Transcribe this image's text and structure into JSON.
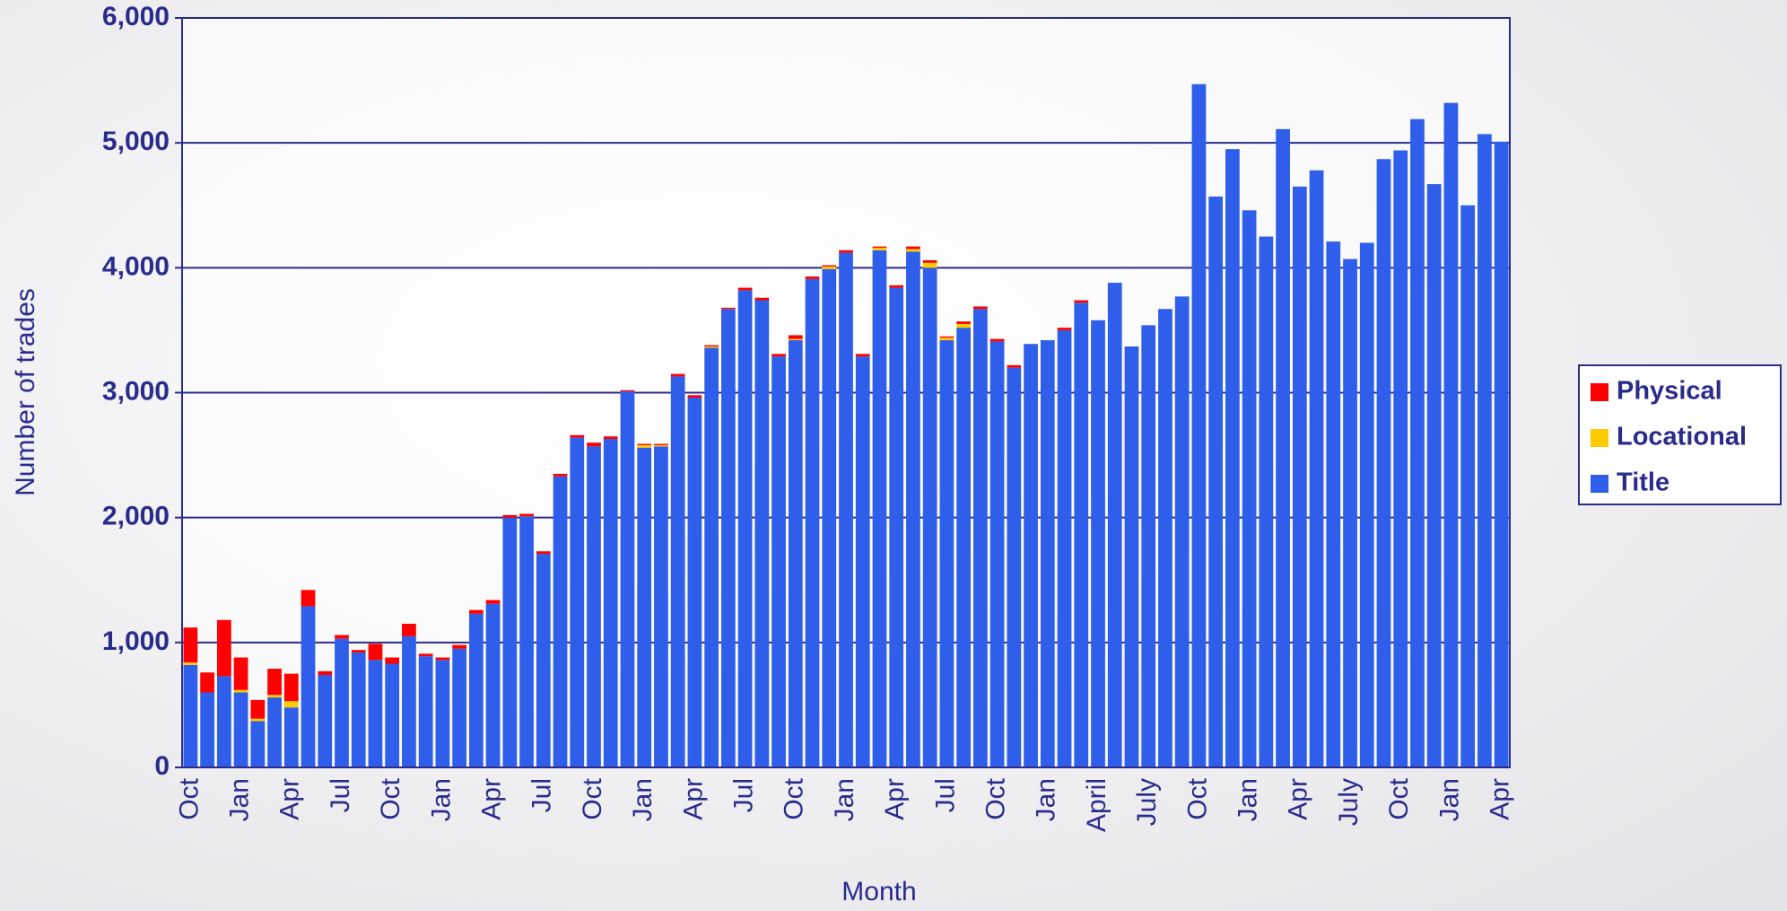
{
  "chart_data": {
    "type": "stacked_bar",
    "x_label": "Month",
    "y_label": "Number of trades",
    "categories": [
      "Oct",
      null,
      null,
      "Jan",
      null,
      null,
      "Apr",
      null,
      null,
      "Jul",
      null,
      null,
      "Oct",
      null,
      null,
      "Jan",
      null,
      null,
      "Apr",
      null,
      null,
      "Jul",
      null,
      null,
      "Oct",
      null,
      null,
      "Jan",
      null,
      null,
      "Apr",
      null,
      null,
      "Jul",
      null,
      null,
      "Oct",
      null,
      null,
      "Jan",
      null,
      null,
      "Apr",
      null,
      null,
      "Jul",
      null,
      null,
      "Oct",
      null,
      null,
      "Jan",
      null,
      null,
      "April",
      null,
      null,
      "July",
      null,
      null,
      "Oct",
      null,
      null,
      "Jan",
      null,
      null,
      "Apr",
      null,
      null,
      "July",
      null,
      null,
      "Oct",
      null,
      null,
      "Jan",
      null,
      null,
      "Apr"
    ],
    "series": [
      {
        "name": "Title",
        "color": "#2f5fea",
        "values": [
          820,
          600,
          730,
          600,
          370,
          560,
          480,
          1290,
          740,
          1030,
          920,
          860,
          830,
          1050,
          890,
          860,
          950,
          1230,
          1310,
          2000,
          2010,
          1710,
          2330,
          2640,
          2570,
          2630,
          3010,
          2560,
          2570,
          3130,
          2960,
          3360,
          3670,
          3820,
          3740,
          3290,
          3420,
          3910,
          3990,
          4120,
          3290,
          4140,
          3840,
          4130,
          4000,
          3420,
          3520,
          3670,
          3410,
          3200,
          3390,
          3420,
          3500,
          3720,
          3580,
          3880,
          3370,
          3540,
          3670,
          3770,
          5470,
          4570,
          4950,
          4460,
          4250,
          5110,
          4650,
          4780,
          4210,
          4070,
          4200,
          4870,
          4940,
          5190,
          4670,
          5320,
          4500,
          5070,
          5010
        ]
      },
      {
        "name": "Locational",
        "color": "#ffcc00",
        "values": [
          20,
          0,
          0,
          20,
          20,
          20,
          50,
          0,
          0,
          0,
          0,
          0,
          0,
          0,
          0,
          0,
          0,
          0,
          0,
          0,
          0,
          0,
          0,
          0,
          0,
          0,
          0,
          20,
          10,
          0,
          0,
          10,
          0,
          0,
          0,
          0,
          10,
          0,
          20,
          0,
          0,
          20,
          0,
          20,
          40,
          20,
          30,
          0,
          0,
          0,
          0,
          0,
          0,
          0,
          0,
          0,
          0,
          0,
          0,
          0,
          0,
          0,
          0,
          0,
          0,
          0,
          0,
          0,
          0,
          0,
          0,
          0,
          0,
          0,
          0,
          0,
          0,
          0,
          0
        ]
      },
      {
        "name": "Physical",
        "color": "#ff0000",
        "values": [
          280,
          160,
          450,
          260,
          150,
          210,
          220,
          130,
          30,
          30,
          20,
          130,
          50,
          100,
          20,
          20,
          30,
          30,
          30,
          20,
          20,
          20,
          20,
          20,
          30,
          20,
          10,
          10,
          10,
          20,
          20,
          10,
          10,
          20,
          20,
          20,
          30,
          20,
          10,
          20,
          20,
          10,
          20,
          20,
          20,
          10,
          20,
          20,
          20,
          20,
          0,
          0,
          20,
          20,
          0,
          0,
          0,
          0,
          0,
          0,
          0,
          0,
          0,
          0,
          0,
          0,
          0,
          0,
          0,
          0,
          0,
          0,
          0,
          0,
          0,
          0,
          0,
          0,
          0
        ]
      }
    ],
    "ylim": [
      0,
      6000
    ],
    "yticks": [
      0,
      {
        "value": 1000,
        "label": "1,000"
      },
      {
        "value": 2000,
        "label": "2,000"
      },
      {
        "value": 3000,
        "label": "3,000"
      },
      {
        "value": 4000,
        "label": "4,000"
      },
      {
        "value": 5000,
        "label": "5,000"
      },
      {
        "value": 6000,
        "label": "6,000"
      }
    ],
    "grid": true,
    "legend": "right"
  }
}
